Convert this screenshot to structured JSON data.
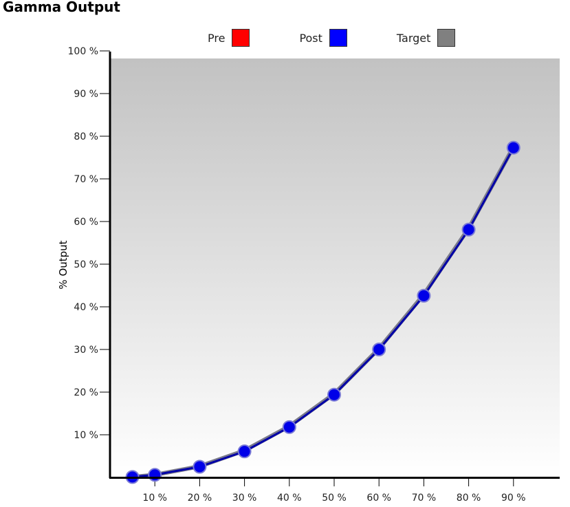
{
  "title": "Gamma Output",
  "colors": {
    "pre": "#ff0000",
    "post": "#0000ff",
    "target": "#808080",
    "marker_fill": "#0000e8",
    "marker_stroke": "#7b7bd6",
    "line_post": "#0000a8",
    "line_target": "#7a7a8a",
    "bg_top": "#c2c2c2",
    "bg_bottom": "#ffffff"
  },
  "legend": [
    {
      "label": "Pre",
      "color": "#ff0000"
    },
    {
      "label": "Post",
      "color": "#0000ff"
    },
    {
      "label": "Target",
      "color": "#808080"
    }
  ],
  "chart_data": {
    "type": "line",
    "title": "Gamma Output",
    "xlabel": "",
    "ylabel": "% Output",
    "xlim": [
      0,
      100
    ],
    "ylim": [
      0,
      100
    ],
    "x_ticks": [
      10,
      20,
      30,
      40,
      50,
      60,
      70,
      80,
      90
    ],
    "x_tick_labels": [
      "10 %",
      "20 %",
      "30 %",
      "40 %",
      "50 %",
      "60 %",
      "70 %",
      "80 %",
      "90 %"
    ],
    "y_ticks": [
      10,
      20,
      30,
      40,
      50,
      60,
      70,
      80,
      90,
      100
    ],
    "y_tick_labels": [
      "10 %",
      "20 %",
      "30 %",
      "40 %",
      "50 %",
      "60 %",
      "70 %",
      "80 %",
      "90 %",
      "100 %"
    ],
    "grid": false,
    "legend_position": "top-center",
    "x": [
      5,
      10,
      20,
      30,
      40,
      50,
      60,
      70,
      80,
      90
    ],
    "series": [
      {
        "name": "Target",
        "values": [
          0.1,
          0.6,
          2.6,
          6.3,
          12.0,
          19.6,
          30.2,
          42.9,
          58.4,
          77.5
        ]
      },
      {
        "name": "Post",
        "values": [
          0.1,
          0.6,
          2.5,
          6.1,
          11.8,
          19.4,
          30.0,
          42.6,
          58.1,
          77.3
        ]
      }
    ]
  }
}
